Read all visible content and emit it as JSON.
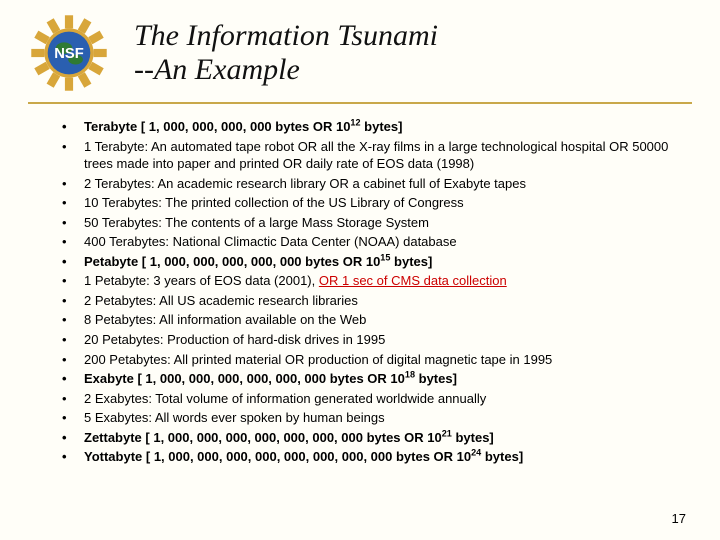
{
  "slide": {
    "number": "17",
    "background_color": "#fffef8",
    "rule_color": "#c9a84a"
  },
  "logo": {
    "gear_color": "#d8a63a",
    "globe_sky": "#2a5fb0",
    "globe_land": "#2f7a34",
    "text": "NSF",
    "text_color": "#ffffff"
  },
  "title": {
    "line1": "The Information Tsunami",
    "line2": "--An Example",
    "font_family": "Times New Roman, serif",
    "font_style": "italic",
    "font_size_pt": 30,
    "color": "#111111"
  },
  "bullets": {
    "font_size_pt": 13,
    "color": "#000000",
    "items": [
      {
        "bold": true,
        "segments": [
          {
            "t": "Terabyte [ 1, 000, 000, 000, 000 bytes OR 10"
          },
          {
            "t": "12",
            "sup": true
          },
          {
            "t": " bytes]"
          }
        ]
      },
      {
        "segments": [
          {
            "t": "1 Terabyte: An automated tape robot OR all the X-ray films in a large technological hospital OR 50000 trees made into paper and printed OR daily rate of EOS data (1998)"
          }
        ]
      },
      {
        "segments": [
          {
            "t": "2 Terabytes: An academic research library OR a cabinet full of Exabyte tapes"
          }
        ]
      },
      {
        "segments": [
          {
            "t": "10 Terabytes: The printed collection of the US Library of Congress"
          }
        ]
      },
      {
        "segments": [
          {
            "t": "50 Terabytes: The contents of a large Mass Storage System"
          }
        ]
      },
      {
        "segments": [
          {
            "t": "400 Terabytes: National Climactic Data Center (NOAA) database"
          }
        ]
      },
      {
        "bold": true,
        "segments": [
          {
            "t": "Petabyte [ 1, 000, 000, 000, 000, 000 bytes OR 10"
          },
          {
            "t": "15",
            "sup": true
          },
          {
            "t": " bytes]"
          }
        ]
      },
      {
        "segments": [
          {
            "t": "1 Petabyte: 3 years of EOS data (2001), "
          },
          {
            "t": "OR 1 sec of CMS data collection",
            "red": true
          }
        ]
      },
      {
        "segments": [
          {
            "t": "2 Petabytes: All US academic research libraries"
          }
        ]
      },
      {
        "segments": [
          {
            "t": "8 Petabytes: All information available on the Web"
          }
        ]
      },
      {
        "segments": [
          {
            "t": "20 Petabytes: Production of hard-disk drives in 1995"
          }
        ]
      },
      {
        "segments": [
          {
            "t": "200 Petabytes: All printed material OR production of digital magnetic tape in 1995"
          }
        ]
      },
      {
        "bold": true,
        "segments": [
          {
            "t": "Exabyte [ 1, 000, 000, 000, 000, 000, 000 bytes OR 10"
          },
          {
            "t": "18",
            "sup": true
          },
          {
            "t": " bytes]"
          }
        ]
      },
      {
        "segments": [
          {
            "t": "2 Exabytes: Total volume of information generated worldwide annually"
          }
        ]
      },
      {
        "segments": [
          {
            "t": "5 Exabytes: All words ever spoken by human beings"
          }
        ]
      },
      {
        "bold": true,
        "segments": [
          {
            "t": "Zettabyte [ 1, 000, 000, 000, 000, 000, 000, 000 bytes OR 10"
          },
          {
            "t": "21",
            "sup": true
          },
          {
            "t": " bytes]"
          }
        ]
      },
      {
        "bold": true,
        "segments": [
          {
            "t": "Yottabyte [ 1, 000, 000, 000, 000, 000, 000, 000, 000 bytes OR 10"
          },
          {
            "t": "24",
            "sup": true
          },
          {
            "t": " bytes]"
          }
        ]
      }
    ]
  }
}
